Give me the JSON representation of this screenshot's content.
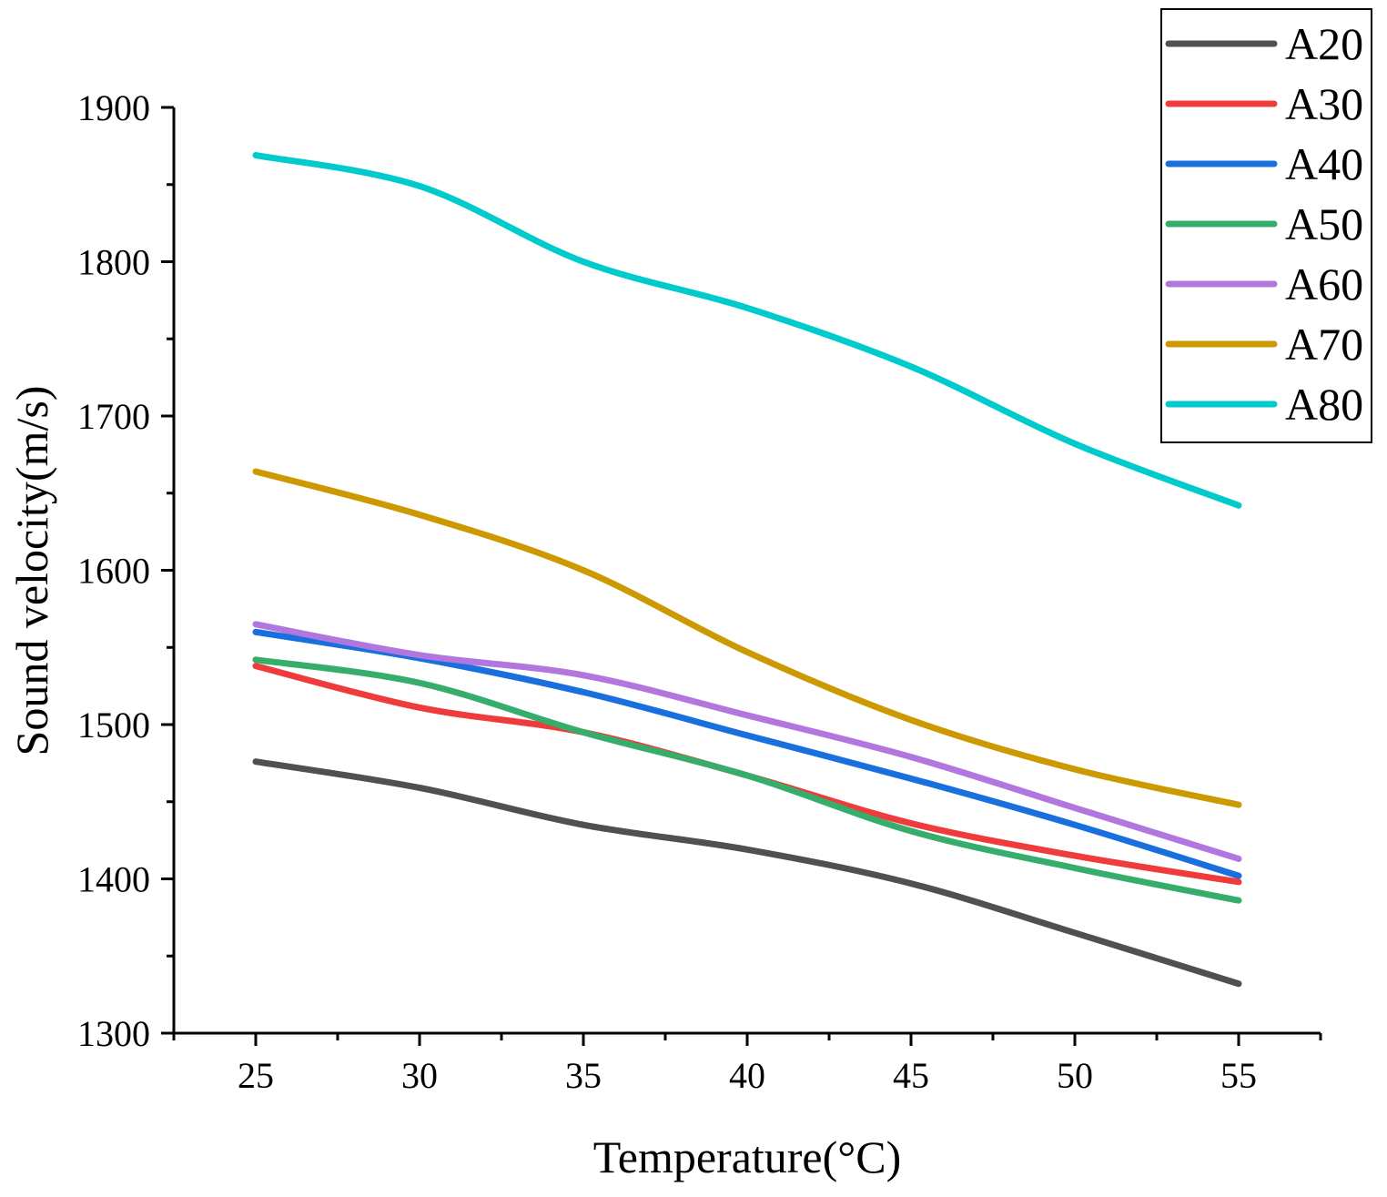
{
  "chart_data": {
    "type": "line",
    "xlabel": "Temperature(°C)",
    "ylabel": "Sound velocity(m/s)",
    "xlim": [
      22.5,
      57.5
    ],
    "ylim": [
      1300,
      1900
    ],
    "x_major_ticks": [
      25,
      30,
      35,
      40,
      45,
      50,
      55
    ],
    "x_minor_ticks": [
      22.5,
      27.5,
      32.5,
      37.5,
      42.5,
      47.5,
      52.5,
      57.5
    ],
    "y_major_ticks": [
      1300,
      1400,
      1500,
      1600,
      1700,
      1800,
      1900
    ],
    "y_minor_ticks": [
      1350,
      1450,
      1550,
      1650,
      1750,
      1850
    ],
    "legend_position": "top-right",
    "x": [
      25,
      30,
      35,
      40,
      45,
      50,
      55
    ],
    "series": [
      {
        "name": "A20",
        "color": "#505050",
        "values": [
          1476,
          1459,
          1435,
          1419,
          1397,
          1365,
          1332
        ]
      },
      {
        "name": "A30",
        "color": "#ef3b3b",
        "values": [
          1538,
          1511,
          1495,
          1467,
          1436,
          1415,
          1398
        ]
      },
      {
        "name": "A40",
        "color": "#1a6fdf",
        "values": [
          1560,
          1543,
          1521,
          1493,
          1465,
          1435,
          1402
        ]
      },
      {
        "name": "A50",
        "color": "#37ad6b",
        "values": [
          1542,
          1527,
          1495,
          1467,
          1431,
          1407,
          1386
        ]
      },
      {
        "name": "A60",
        "color": "#b177de",
        "values": [
          1565,
          1545,
          1532,
          1506,
          1479,
          1446,
          1413
        ]
      },
      {
        "name": "A70",
        "color": "#cc9900",
        "values": [
          1664,
          1636,
          1600,
          1547,
          1503,
          1471,
          1448
        ]
      },
      {
        "name": "A80",
        "color": "#00cbcc",
        "values": [
          1869,
          1849,
          1800,
          1770,
          1732,
          1682,
          1642
        ]
      }
    ]
  }
}
